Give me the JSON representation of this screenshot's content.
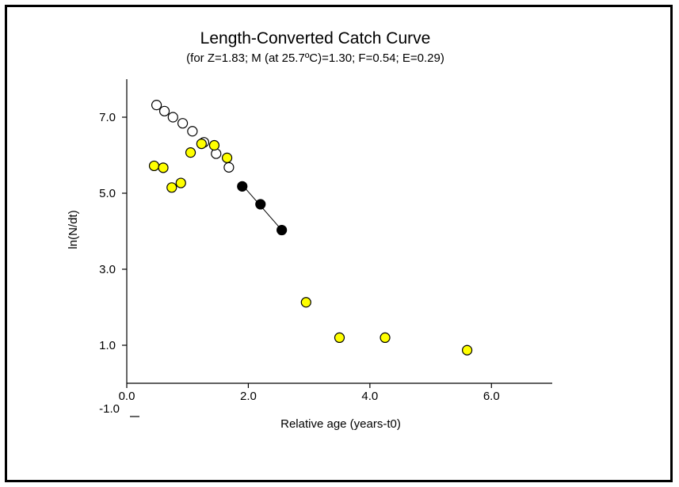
{
  "chart_data": {
    "type": "scatter",
    "title": "Length-Converted Catch Curve",
    "subtitle": "(for Z=1.83; M (at 25.7ºC)=1.30; F=0.54; E=0.29)",
    "xlabel": "Relative age (years-t0)",
    "ylabel": "ln(N/dt)",
    "xlim": [
      0,
      7
    ],
    "ylim": [
      0,
      8
    ],
    "x_ticks": [
      {
        "value": 0,
        "label": "0.0"
      },
      {
        "value": 2,
        "label": "2.0"
      },
      {
        "value": 4,
        "label": "4.0"
      },
      {
        "value": 6,
        "label": "6.0"
      }
    ],
    "y_ticks": [
      {
        "value": 1,
        "label": "1.0"
      },
      {
        "value": 3,
        "label": "3.0"
      },
      {
        "value": 5,
        "label": "5.0"
      },
      {
        "value": 7,
        "label": "7.0"
      }
    ],
    "extra_y_tick_label": {
      "value": -1,
      "label": "-1.0"
    },
    "grid": false,
    "series": [
      {
        "marker": "open-circle",
        "fill": "#ffffff",
        "stroke": "#000000",
        "x": [
          0.49,
          0.62,
          0.76,
          0.92,
          1.08,
          1.27,
          1.47,
          1.68
        ],
        "y": [
          7.32,
          7.16,
          7.0,
          6.84,
          6.63,
          6.34,
          6.04,
          5.68
        ]
      },
      {
        "marker": "yellow-circle",
        "fill": "#ffff00",
        "stroke": "#000000",
        "x": [
          0.45,
          0.6,
          0.74,
          0.89,
          1.05,
          1.23,
          1.44,
          1.65,
          2.95,
          3.5,
          4.25,
          5.6
        ],
        "y": [
          5.72,
          5.67,
          5.15,
          5.27,
          6.07,
          6.3,
          6.26,
          5.93,
          2.13,
          1.2,
          1.2,
          0.87
        ]
      },
      {
        "marker": "filled-circle",
        "fill": "#000000",
        "stroke": "#000000",
        "x": [
          1.9,
          2.2,
          2.55
        ],
        "y": [
          5.18,
          4.71,
          4.03
        ]
      }
    ],
    "regression_line": {
      "x": [
        1.9,
        2.55
      ],
      "y": [
        5.22,
        4.03
      ]
    }
  }
}
